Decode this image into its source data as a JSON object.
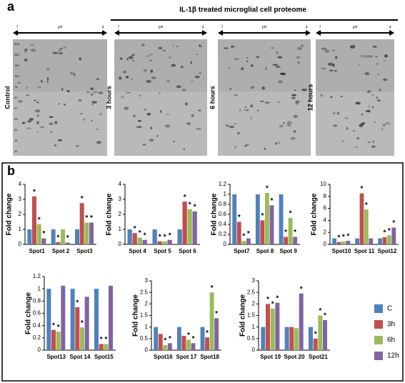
{
  "figure": {
    "panel_a": {
      "label": "a",
      "title": "IL-1β treated microglial cell proteome",
      "gels": [
        "Control",
        "3 hours",
        "6 hours",
        "12 hours"
      ],
      "ph_labels": [
        "7",
        "pH",
        "4"
      ],
      "mw_labels": [
        "kDa",
        "250",
        "150",
        "100",
        "75",
        "50",
        "37",
        "25",
        "20",
        "15",
        "10"
      ]
    },
    "panel_b": {
      "label": "b"
    }
  },
  "chart_data": [
    {
      "type": "bar",
      "y_label": "Fold change",
      "categories": [
        "Spot1",
        "Spot 2",
        "Spot3"
      ],
      "ylim": [
        0,
        4
      ],
      "yticks": [
        0,
        1,
        2,
        3,
        4
      ],
      "series": [
        {
          "name": "C",
          "color": "#4f81bd",
          "values": [
            1,
            1,
            1
          ],
          "significance": [
            null,
            null,
            null
          ]
        },
        {
          "name": "3h",
          "color": "#c0504d",
          "values": [
            3.2,
            0.15,
            2.75
          ],
          "significance": [
            "*",
            "*",
            "*"
          ]
        },
        {
          "name": "6h",
          "color": "#9bbb59",
          "values": [
            1.35,
            1.0,
            1.45
          ],
          "significance": [
            "*",
            null,
            "*"
          ]
        },
        {
          "name": "12h",
          "color": "#8064a2",
          "values": [
            0.4,
            0.12,
            1.45
          ],
          "significance": [
            "*",
            "*",
            "*"
          ]
        }
      ]
    },
    {
      "type": "bar",
      "y_label": "Fold change",
      "categories": [
        "Spot 4",
        "Spot 5",
        "Spot 6"
      ],
      "ylim": [
        0,
        4
      ],
      "yticks": [
        0,
        1,
        2,
        3,
        4
      ],
      "series": [
        {
          "name": "C",
          "color": "#4f81bd",
          "values": [
            1,
            1,
            1
          ],
          "significance": [
            null,
            null,
            null
          ]
        },
        {
          "name": "3h",
          "color": "#c0504d",
          "values": [
            0.75,
            0.2,
            2.85
          ],
          "significance": [
            "*",
            "*",
            "*"
          ]
        },
        {
          "name": "6h",
          "color": "#9bbb59",
          "values": [
            0.45,
            0.2,
            2.35
          ],
          "significance": [
            "*",
            "*",
            "*"
          ]
        },
        {
          "name": "12h",
          "color": "#8064a2",
          "values": [
            0.3,
            0.3,
            2.2
          ],
          "significance": [
            "*",
            "*",
            "*"
          ]
        }
      ]
    },
    {
      "type": "bar",
      "y_label": "Fold change",
      "categories": [
        "Spot7",
        "Spot 8",
        "Spot 9"
      ],
      "ylim": [
        0,
        1.2
      ],
      "yticks": [
        0,
        0.2,
        0.4,
        0.6,
        0.8,
        1,
        1.2
      ],
      "series": [
        {
          "name": "C",
          "color": "#4f81bd",
          "values": [
            1,
            1,
            1
          ],
          "significance": [
            null,
            null,
            null
          ]
        },
        {
          "name": "3h",
          "color": "#c0504d",
          "values": [
            0.45,
            0.48,
            0.15
          ],
          "significance": [
            "*",
            "*",
            "*"
          ]
        },
        {
          "name": "6h",
          "color": "#9bbb59",
          "values": [
            0.07,
            1.03,
            0.53
          ],
          "significance": [
            "*",
            "*",
            "*"
          ]
        },
        {
          "name": "12h",
          "color": "#8064a2",
          "values": [
            0.12,
            0.78,
            0.15
          ],
          "significance": [
            "*",
            "*",
            "*"
          ]
        }
      ]
    },
    {
      "type": "bar",
      "y_label": "Fold change",
      "categories": [
        "Spot10",
        "Spot 11",
        "Spot12"
      ],
      "ylim": [
        0,
        10
      ],
      "yticks": [
        0,
        2,
        4,
        6,
        8,
        10
      ],
      "series": [
        {
          "name": "C",
          "color": "#4f81bd",
          "values": [
            1,
            1,
            1
          ],
          "significance": [
            null,
            null,
            null
          ]
        },
        {
          "name": "3h",
          "color": "#c0504d",
          "values": [
            0.4,
            8.5,
            1.2
          ],
          "significance": [
            "*",
            "*",
            "*"
          ]
        },
        {
          "name": "6h",
          "color": "#9bbb59",
          "values": [
            0.5,
            5.8,
            1.5
          ],
          "significance": [
            "*",
            "*",
            "*"
          ]
        },
        {
          "name": "12h",
          "color": "#8064a2",
          "values": [
            0.6,
            1,
            2.8
          ],
          "significance": [
            "*",
            null,
            "*"
          ]
        }
      ]
    },
    {
      "type": "bar",
      "y_label": "Fold change",
      "categories": [
        "Spot13",
        "Spot 14",
        "Spot15"
      ],
      "ylim": [
        0,
        1.2
      ],
      "yticks": [
        0,
        0.2,
        0.4,
        0.6,
        0.8,
        1,
        1.2
      ],
      "series": [
        {
          "name": "C",
          "color": "#4f81bd",
          "values": [
            1,
            1,
            1
          ],
          "significance": [
            null,
            null,
            null
          ]
        },
        {
          "name": "3h",
          "color": "#c0504d",
          "values": [
            0.33,
            0.7,
            0.1
          ],
          "significance": [
            "*",
            "*",
            "*"
          ]
        },
        {
          "name": "6h",
          "color": "#9bbb59",
          "values": [
            0.3,
            0.37,
            0.1
          ],
          "significance": [
            "*",
            "*",
            "*"
          ]
        },
        {
          "name": "12h",
          "color": "#8064a2",
          "values": [
            1.05,
            0.87,
            1.05
          ],
          "significance": [
            null,
            null,
            null
          ]
        }
      ]
    },
    {
      "type": "bar",
      "y_label": "Fold change",
      "categories": [
        "Spot16",
        "Spot 17",
        "Spot18"
      ],
      "ylim": [
        0,
        3
      ],
      "yticks": [
        0,
        0.5,
        1,
        1.5,
        2,
        2.5,
        3
      ],
      "series": [
        {
          "name": "C",
          "color": "#4f81bd",
          "values": [
            1,
            1,
            1
          ],
          "significance": [
            null,
            null,
            null
          ]
        },
        {
          "name": "3h",
          "color": "#c0504d",
          "values": [
            0.7,
            0.62,
            0.55
          ],
          "significance": [
            null,
            null,
            "*"
          ]
        },
        {
          "name": "6h",
          "color": "#9bbb59",
          "values": [
            0.22,
            0.45,
            2.5
          ],
          "significance": [
            "*",
            "*",
            "*"
          ]
        },
        {
          "name": "12h",
          "color": "#8064a2",
          "values": [
            0.3,
            0.3,
            1.38
          ],
          "significance": [
            "*",
            "*",
            "*"
          ]
        }
      ]
    },
    {
      "type": "bar",
      "y_label": "Fold change",
      "categories": [
        "Spot 19",
        "Spot 20",
        "Spot21"
      ],
      "ylim": [
        0,
        3
      ],
      "yticks": [
        0,
        0.5,
        1,
        1.5,
        2,
        2.5,
        3
      ],
      "series": [
        {
          "name": "C",
          "color": "#4f81bd",
          "values": [
            1,
            1,
            1
          ],
          "significance": [
            null,
            null,
            null
          ]
        },
        {
          "name": "3h",
          "color": "#c0504d",
          "values": [
            2.0,
            1,
            0.5
          ],
          "significance": [
            "*",
            null,
            "*"
          ]
        },
        {
          "name": "6h",
          "color": "#9bbb59",
          "values": [
            1.8,
            0.95,
            1.5
          ],
          "significance": [
            "*",
            null,
            "*"
          ]
        },
        {
          "name": "12h",
          "color": "#8064a2",
          "values": [
            2.05,
            2.45,
            1.3
          ],
          "significance": [
            "*",
            "*",
            "*"
          ]
        }
      ]
    }
  ]
}
